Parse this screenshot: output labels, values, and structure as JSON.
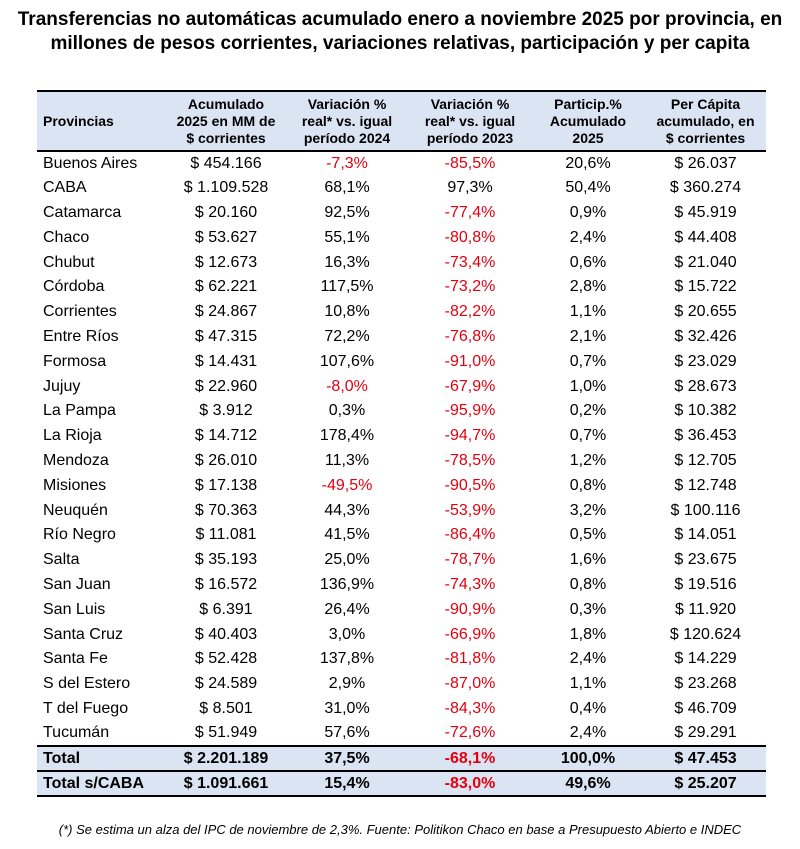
{
  "title": "Transferencias no automáticas acumulado enero a noviembre 2025 por provincia, en millones de pesos corrientes, variaciones relativas, participación y per capita",
  "headers": {
    "provincias": "Provincias",
    "acumulado": [
      "Acumulado",
      "2025 en MM de",
      "$ corrientes"
    ],
    "var2024": [
      "Variación %",
      "real* vs. igual",
      "período 2024"
    ],
    "var2023": [
      "Variación %",
      "real* vs. igual",
      "período 2023"
    ],
    "particip": [
      "Particip.%",
      "Acumulado",
      "2025"
    ],
    "percapita": [
      "Per Cápita",
      "acumulado, en",
      "$ corrientes"
    ]
  },
  "rows": [
    {
      "prov": "Buenos Aires",
      "acum": "$ 454.166",
      "v24": "-7,3%",
      "v23": "-85,5%",
      "part": "20,6%",
      "pc": "$ 26.037"
    },
    {
      "prov": "CABA",
      "acum": "$ 1.109.528",
      "v24": "68,1%",
      "v23": "97,3%",
      "part": "50,4%",
      "pc": "$ 360.274"
    },
    {
      "prov": "Catamarca",
      "acum": "$ 20.160",
      "v24": "92,5%",
      "v23": "-77,4%",
      "part": "0,9%",
      "pc": "$ 45.919"
    },
    {
      "prov": "Chaco",
      "acum": "$ 53.627",
      "v24": "55,1%",
      "v23": "-80,8%",
      "part": "2,4%",
      "pc": "$ 44.408"
    },
    {
      "prov": "Chubut",
      "acum": "$ 12.673",
      "v24": "16,3%",
      "v23": "-73,4%",
      "part": "0,6%",
      "pc": "$ 21.040"
    },
    {
      "prov": "Córdoba",
      "acum": "$ 62.221",
      "v24": "117,5%",
      "v23": "-73,2%",
      "part": "2,8%",
      "pc": "$ 15.722"
    },
    {
      "prov": "Corrientes",
      "acum": "$ 24.867",
      "v24": "10,8%",
      "v23": "-82,2%",
      "part": "1,1%",
      "pc": "$ 20.655"
    },
    {
      "prov": "Entre Ríos",
      "acum": "$ 47.315",
      "v24": "72,2%",
      "v23": "-76,8%",
      "part": "2,1%",
      "pc": "$ 32.426"
    },
    {
      "prov": "Formosa",
      "acum": "$ 14.431",
      "v24": "107,6%",
      "v23": "-91,0%",
      "part": "0,7%",
      "pc": "$ 23.029"
    },
    {
      "prov": "Jujuy",
      "acum": "$ 22.960",
      "v24": "-8,0%",
      "v23": "-67,9%",
      "part": "1,0%",
      "pc": "$ 28.673"
    },
    {
      "prov": "La Pampa",
      "acum": "$ 3.912",
      "v24": "0,3%",
      "v23": "-95,9%",
      "part": "0,2%",
      "pc": "$ 10.382"
    },
    {
      "prov": "La Rioja",
      "acum": "$ 14.712",
      "v24": "178,4%",
      "v23": "-94,7%",
      "part": "0,7%",
      "pc": "$ 36.453"
    },
    {
      "prov": "Mendoza",
      "acum": "$ 26.010",
      "v24": "11,3%",
      "v23": "-78,5%",
      "part": "1,2%",
      "pc": "$ 12.705"
    },
    {
      "prov": "Misiones",
      "acum": "$ 17.138",
      "v24": "-49,5%",
      "v23": "-90,5%",
      "part": "0,8%",
      "pc": "$ 12.748"
    },
    {
      "prov": "Neuquén",
      "acum": "$ 70.363",
      "v24": "44,3%",
      "v23": "-53,9%",
      "part": "3,2%",
      "pc": "$ 100.116"
    },
    {
      "prov": "Río Negro",
      "acum": "$ 11.081",
      "v24": "41,5%",
      "v23": "-86,4%",
      "part": "0,5%",
      "pc": "$ 14.051"
    },
    {
      "prov": "Salta",
      "acum": "$ 35.193",
      "v24": "25,0%",
      "v23": "-78,7%",
      "part": "1,6%",
      "pc": "$ 23.675"
    },
    {
      "prov": "San Juan",
      "acum": "$ 16.572",
      "v24": "136,9%",
      "v23": "-74,3%",
      "part": "0,8%",
      "pc": "$ 19.516"
    },
    {
      "prov": "San Luis",
      "acum": "$ 6.391",
      "v24": "26,4%",
      "v23": "-90,9%",
      "part": "0,3%",
      "pc": "$ 11.920"
    },
    {
      "prov": "Santa Cruz",
      "acum": "$ 40.403",
      "v24": "3,0%",
      "v23": "-66,9%",
      "part": "1,8%",
      "pc": "$ 120.624"
    },
    {
      "prov": "Santa Fe",
      "acum": "$ 52.428",
      "v24": "137,8%",
      "v23": "-81,8%",
      "part": "2,4%",
      "pc": "$ 14.229"
    },
    {
      "prov": "S del Estero",
      "acum": "$ 24.589",
      "v24": "2,9%",
      "v23": "-87,0%",
      "part": "1,1%",
      "pc": "$ 23.268"
    },
    {
      "prov": "T del Fuego",
      "acum": "$ 8.501",
      "v24": "31,0%",
      "v23": "-84,3%",
      "part": "0,4%",
      "pc": "$ 46.709"
    },
    {
      "prov": "Tucumán",
      "acum": "$ 51.949",
      "v24": "57,6%",
      "v23": "-72,6%",
      "part": "2,4%",
      "pc": "$ 29.291"
    }
  ],
  "totals": [
    {
      "prov": "Total",
      "acum": "$ 2.201.189",
      "v24": "37,5%",
      "v23": "-68,1%",
      "part": "100,0%",
      "pc": "$ 47.453"
    },
    {
      "prov": "Total s/CABA",
      "acum": "$ 1.091.661",
      "v24": "15,4%",
      "v23": "-83,0%",
      "part": "49,6%",
      "pc": "$ 25.207"
    }
  ],
  "note": "(*) Se estima un alza del IPC de noviembre de 2,3%. Fuente: Politikon Chaco en base a Presupuesto Abierto e INDEC",
  "colors": {
    "header_bg": "#dbe4f2",
    "negative": "#e3000f",
    "text": "#000000"
  }
}
